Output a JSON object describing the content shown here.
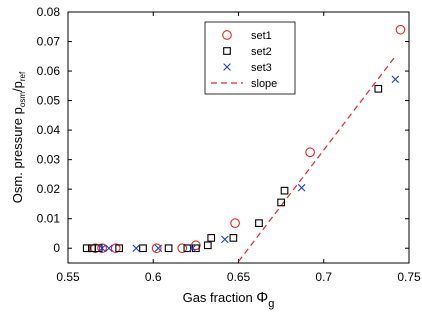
{
  "chart_data": {
    "type": "scatter",
    "xlabel": "Gas fraction",
    "xlabel_symbol": "Φ",
    "xlabel_subscript": "g",
    "ylabel_prefix": "Osm. pressure p",
    "ylabel_sub1": "osm",
    "ylabel_mid": "/p",
    "ylabel_sub2": "ref",
    "xlim": [
      0.55,
      0.75
    ],
    "ylim": [
      -0.005,
      0.08
    ],
    "xticks": [
      0.55,
      0.6,
      0.65,
      0.7,
      0.75
    ],
    "xtick_labels": [
      "0.55",
      "0.6",
      "0.65",
      "0.7",
      "0.75"
    ],
    "yticks": [
      0,
      0.01,
      0.02,
      0.03,
      0.04,
      0.05,
      0.06,
      0.07,
      0.08
    ],
    "ytick_labels": [
      "0",
      "0.01",
      "0.02",
      "0.03",
      "0.04",
      "0.05",
      "0.06",
      "0.07",
      "0.08"
    ],
    "legend_position": "top-center",
    "series": [
      {
        "name": "set1",
        "marker": "circle",
        "color": "#e8262a",
        "x": [
          0.566,
          0.57,
          0.578,
          0.602,
          0.617,
          0.625,
          0.648,
          0.692,
          0.745
        ],
        "y": [
          0,
          0,
          0,
          0,
          0,
          0.001,
          0.0085,
          0.0325,
          0.074
        ]
      },
      {
        "name": "set2",
        "marker": "square",
        "color": "#000000",
        "x": [
          0.561,
          0.564,
          0.568,
          0.58,
          0.594,
          0.609,
          0.62,
          0.625,
          0.632,
          0.634,
          0.647,
          0.662,
          0.675,
          0.677,
          0.732
        ],
        "y": [
          0,
          0,
          0,
          0,
          0,
          0,
          0,
          0,
          0.001,
          0.0035,
          0.0035,
          0.0085,
          0.0155,
          0.0195,
          0.054
        ]
      },
      {
        "name": "set3",
        "marker": "x",
        "color": "#1a3fd6",
        "x": [
          0.57,
          0.574,
          0.59,
          0.603,
          0.623,
          0.642,
          0.687,
          0.742
        ],
        "y": [
          0,
          0,
          0,
          0,
          0,
          0.003,
          0.0205,
          0.0572
        ]
      }
    ],
    "slope_line": {
      "name": "slope",
      "style": "dashed",
      "color": "#e8262a",
      "x": [
        0.65,
        0.742
      ],
      "y": [
        -0.0045,
        0.065
      ]
    }
  }
}
